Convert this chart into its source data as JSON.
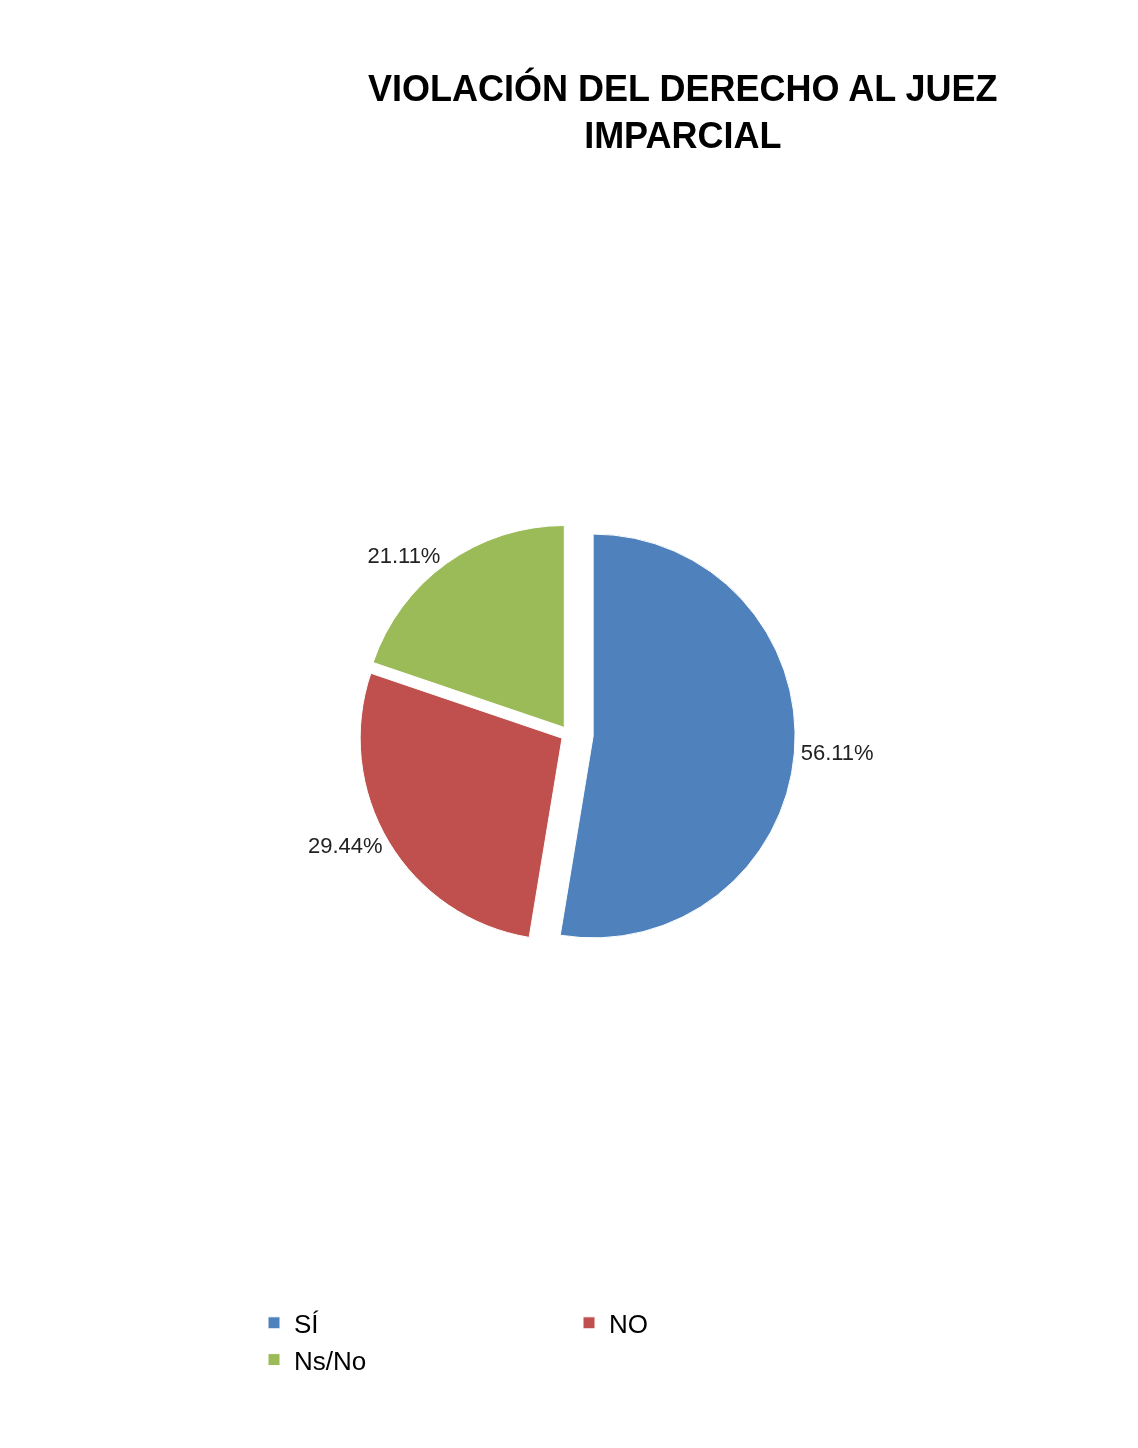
{
  "chart_data": {
    "type": "pie",
    "title": "VIOLACIÓN DEL DERECHO AL JUEZ IMPARCIAL",
    "categories": [
      "SÍ",
      "NO",
      "Ns/No"
    ],
    "values": [
      56.11,
      29.44,
      21.11
    ],
    "colors": [
      "#4f81bd",
      "#c0504d",
      "#9bbb59"
    ],
    "value_labels": [
      "56.11%",
      "29.44%",
      "21.11%"
    ],
    "legend": "bottom"
  }
}
